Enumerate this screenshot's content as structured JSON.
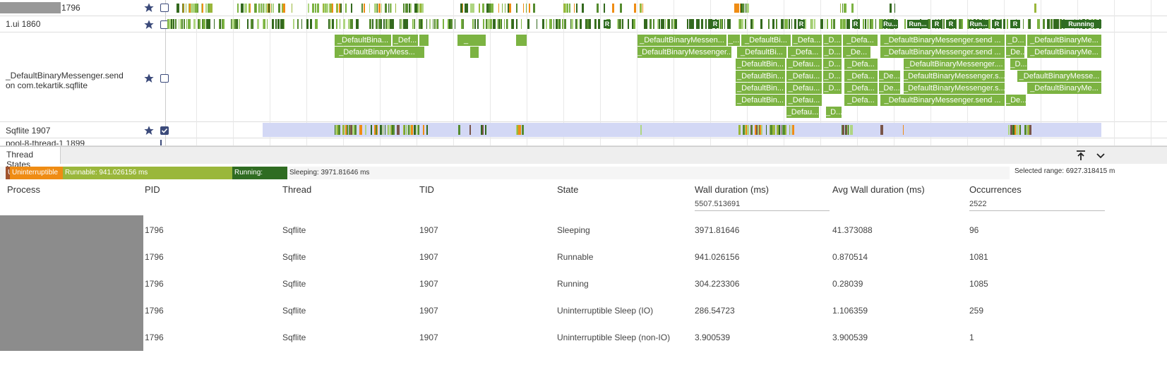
{
  "tracks": [
    {
      "label": "1796"
    },
    {
      "label": "1.ui 1860"
    },
    {
      "label": "_DefaultBinaryMessenger.send on com.tekartik.sqflite"
    },
    {
      "label": "Sqflite 1907"
    },
    {
      "label": "pool-8-thread-1 1899"
    }
  ],
  "ui_state_labels": [
    "R",
    "R",
    "R",
    "R",
    "Ru...",
    "Run...",
    "R",
    "R",
    "Run...",
    "R",
    "R",
    "Running"
  ],
  "slices": [
    "_DefaultBina...",
    "_Def...",
    "_",
    "_DefaultBinaryMessen...",
    "_...",
    "_DefaultBi...",
    "_Defa...",
    "_D...",
    "_Defa...",
    "_DefaultBinaryMessenger.send ...",
    "_D...",
    "_DefaultBinaryMe...",
    "_DefaultBinaryMess...",
    "_DefaultBinaryMessenger...",
    "_DefaultBi...",
    "_Defa...",
    "_D...",
    "_De...",
    "_DefaultBinaryMessenger.send ...",
    "_De...",
    "_DefaultBinaryMe...",
    "_DefaultBin...",
    "_Defau...",
    "_D...",
    "_Defa...",
    "_DefaultBinaryMessenger....",
    "_D...",
    "_DefaultBin...",
    "_Defau...",
    "_D...",
    "_Defa...",
    "_De...",
    "_DefaultBinaryMessenger.s...",
    "_DefaultBinaryMesse...",
    "_DefaultBin...",
    "_Defau...",
    "_D...",
    "_Defa...",
    "_De...",
    "_DefaultBinaryMessenger.s...",
    "_DefaultBinaryMe...",
    "_DefaultBin...",
    "_Defau...",
    "_Defa...",
    "_DefaultBinaryMessenger.send ...",
    "_De...",
    "_Defau...",
    "_D..."
  ],
  "panel": {
    "tab": "Thread States",
    "breakdown": [
      "U",
      "Uninterruptible",
      "Runnable: 941.026156 ms",
      "Running:",
      "Sleeping: 3971.81646 ms"
    ],
    "selected_range": "Selected range: 6927.318415 m"
  },
  "table": {
    "columns": [
      "Process",
      "PID",
      "Thread",
      "TID",
      "State",
      "Wall duration (ms)",
      "Avg Wall duration (ms)",
      "Occurrences"
    ],
    "totals": {
      "wall": 5507.513691,
      "occurrences": 2522
    },
    "rows": [
      [
        1796,
        "Sqflite",
        1907,
        "Sleeping",
        3971.81646,
        41.373088,
        96
      ],
      [
        1796,
        "Sqflite",
        1907,
        "Runnable",
        941.026156,
        0.870514,
        1081
      ],
      [
        1796,
        "Sqflite",
        1907,
        "Running",
        304.223306,
        0.28039,
        1085
      ],
      [
        1796,
        "Sqflite",
        1907,
        "Uninterruptible Sleep (IO)",
        286.54723,
        1.106359,
        259
      ],
      [
        1796,
        "Sqflite",
        1907,
        "Uninterruptible Sleep (non-IO)",
        3.900539,
        3.900539,
        1
      ]
    ]
  }
}
